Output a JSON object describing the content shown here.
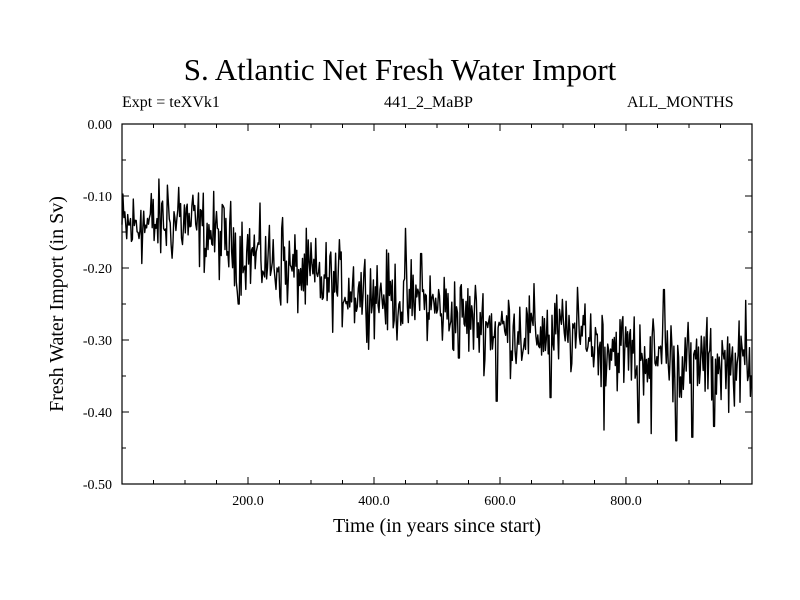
{
  "chart_data": {
    "type": "line",
    "title": "S. Atlantic Net Fresh Water Import",
    "subtitle_left": "Expt = teXVk1",
    "subtitle_center": "441_2_MaBP",
    "subtitle_right": "ALL_MONTHS",
    "xlabel": "Time (in years since start)",
    "ylabel": "Fresh Water Import (in Sv)",
    "xlim": [
      0,
      1000
    ],
    "ylim": [
      -0.5,
      0.0
    ],
    "x_ticks": [
      200,
      400,
      600,
      800
    ],
    "x_tick_labels": [
      "200.0",
      "400.0",
      "600.0",
      "800.0"
    ],
    "y_ticks": [
      0.0,
      -0.1,
      -0.2,
      -0.3,
      -0.4,
      -0.5
    ],
    "y_tick_labels": [
      "0.00",
      "-0.10",
      "-0.20",
      "-0.30",
      "-0.40",
      "-0.50"
    ],
    "grid": false,
    "series": [
      {
        "name": "Fresh Water Import",
        "generator": {
          "x_start": 0,
          "x_end": 1000,
          "step": 1.5,
          "trend_points": [
            [
              0,
              -0.145
            ],
            [
              100,
              -0.135
            ],
            [
              200,
              -0.178
            ],
            [
              300,
              -0.215
            ],
            [
              400,
              -0.235
            ],
            [
              500,
              -0.255
            ],
            [
              600,
              -0.285
            ],
            [
              700,
              -0.29
            ],
            [
              800,
              -0.315
            ],
            [
              900,
              -0.33
            ],
            [
              1000,
              -0.335
            ]
          ],
          "noise_amplitude": 0.028,
          "extremes": [
            [
              30,
              -0.12
            ],
            [
              72,
              -0.085
            ],
            [
              90,
              -0.088
            ],
            [
              185,
              -0.25
            ],
            [
              255,
              -0.13
            ],
            [
              300,
              -0.165
            ],
            [
              450,
              -0.145
            ],
            [
              475,
              -0.18
            ],
            [
              535,
              -0.325
            ],
            [
              595,
              -0.385
            ],
            [
              680,
              -0.38
            ],
            [
              735,
              -0.25
            ],
            [
              765,
              -0.425
            ],
            [
              820,
              -0.415
            ],
            [
              840,
              -0.43
            ],
            [
              860,
              -0.23
            ],
            [
              880,
              -0.44
            ],
            [
              905,
              -0.435
            ],
            [
              940,
              -0.42
            ],
            [
              990,
              -0.245
            ]
          ]
        }
      }
    ]
  }
}
